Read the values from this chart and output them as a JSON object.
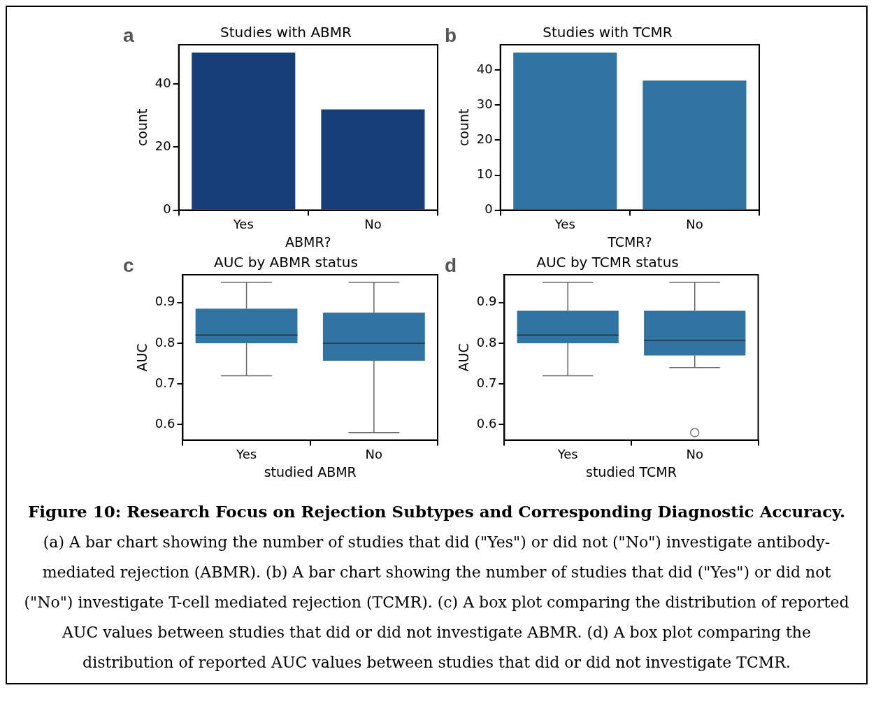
{
  "chart_data": [
    {
      "type": "bar",
      "title": "Studies with ABMR",
      "xlabel": "ABMR?",
      "ylabel": "count",
      "categories": [
        "Yes",
        "No"
      ],
      "values": [
        50,
        32
      ],
      "color": "#173e78",
      "ylim": [
        0,
        52.5
      ],
      "yticks": [
        0,
        20,
        40
      ],
      "annotations": [
        "a"
      ]
    },
    {
      "type": "bar",
      "title": "Studies with TCMR",
      "xlabel": "TCMR?",
      "ylabel": "count",
      "categories": [
        "Yes",
        "No"
      ],
      "values": [
        45,
        37
      ],
      "color": "#3274a1",
      "ylim": [
        0,
        47.25
      ],
      "yticks": [
        0,
        10,
        20,
        30,
        40
      ],
      "annotations": [
        "b"
      ]
    },
    {
      "type": "box",
      "title": "AUC by ABMR status",
      "xlabel": "studied ABMR",
      "ylabel": "AUC",
      "categories": [
        "Yes",
        "No"
      ],
      "color": "#3274a1",
      "ylim": [
        0.5615,
        0.9685
      ],
      "yticks": [
        0.6,
        0.7,
        0.8,
        0.9
      ],
      "annotations": [
        "c"
      ],
      "boxes": [
        {
          "low": 0.72,
          "q1": 0.8,
          "median": 0.82,
          "q3": 0.885,
          "high": 0.95
        },
        {
          "low": 0.58,
          "q1": 0.757,
          "median": 0.8,
          "q3": 0.875,
          "high": 0.95
        }
      ]
    },
    {
      "type": "box",
      "title": "AUC by TCMR status",
      "xlabel": "studied TCMR",
      "ylabel": "AUC",
      "categories": [
        "Yes",
        "No"
      ],
      "color": "#3274a1",
      "ylim": [
        0.5615,
        0.9685
      ],
      "yticks": [
        0.6,
        0.7,
        0.8,
        0.9
      ],
      "annotations": [
        "d"
      ],
      "boxes": [
        {
          "low": 0.72,
          "q1": 0.8,
          "median": 0.82,
          "q3": 0.88,
          "high": 0.95
        },
        {
          "low": 0.74,
          "q1": 0.77,
          "median": 0.807,
          "q3": 0.88,
          "high": 0.95,
          "outliers": [
            0.58
          ]
        }
      ]
    },
    {
      "type": "other",
      "title": "Figure 10: Research Focus on Rejection Subtypes and Corresponding Diagnostic Accuracy.",
      "annotations": [
        "(a) A bar chart showing the number of studies that did (\"Yes\") or did not (\"No\") investigate antibody-mediated rejection (ABMR). (b) A bar chart showing the number of studies that did (\"Yes\") or did not (\"No\") investigate T-cell mediated rejection (TCMR). (c) A box plot comparing the distribution of reported AUC values between studies that did or did not investigate ABMR. (d) A box plot comparing the distribution of reported AUC values between studies that did or did not investigate TCMR."
      ]
    }
  ]
}
